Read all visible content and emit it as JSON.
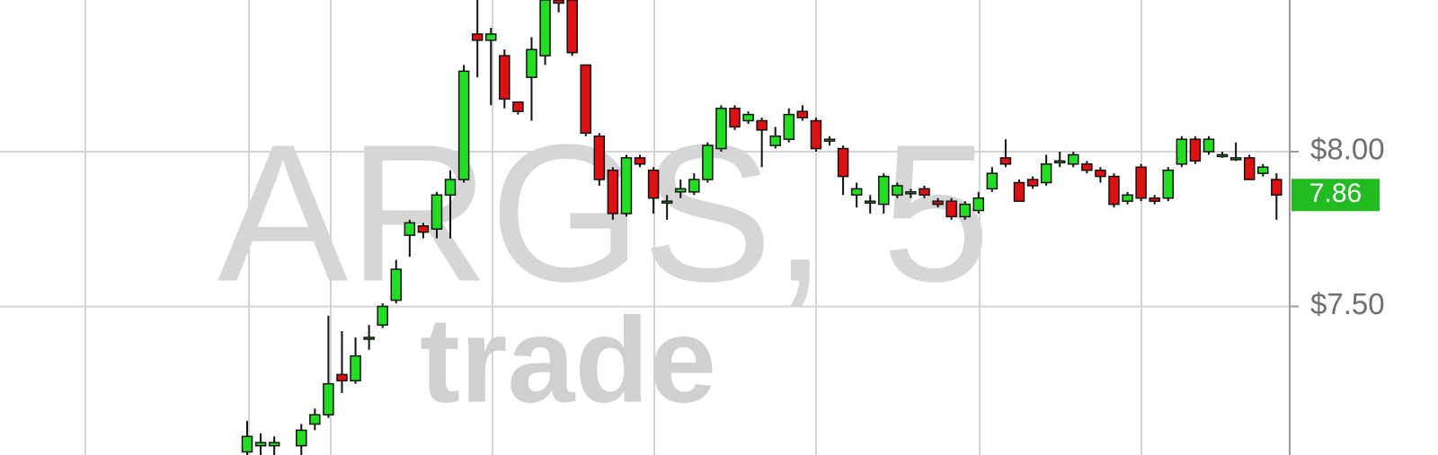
{
  "chart_data": {
    "type": "candlestick",
    "watermark": "ARGS, 5",
    "watermark_brand": "trade",
    "open": [
      7.03,
      7.05,
      7.05,
      7.0,
      7.05,
      7.12,
      7.15,
      7.28,
      7.26,
      7.4,
      7.44,
      7.52,
      7.73,
      7.76,
      7.75,
      7.86,
      7.91,
      8.38,
      8.36,
      8.31,
      8.16,
      8.24,
      8.31,
      8.49,
      8.49,
      8.28,
      8.05,
      7.94,
      7.8,
      7.98,
      7.94,
      7.84,
      7.87,
      7.87,
      7.91,
      8.01,
      8.14,
      8.1,
      8.1,
      8.02,
      8.04,
      8.13,
      8.1,
      8.04,
      8.01,
      7.86,
      7.84,
      7.83,
      7.86,
      7.87,
      7.88,
      7.84,
      7.84,
      7.79,
      7.81,
      7.88,
      7.98,
      7.9,
      7.91,
      7.9,
      7.97,
      7.96,
      7.96,
      7.94,
      7.92,
      7.84,
      7.95,
      7.85,
      7.85,
      7.96,
      8.04,
      8.0,
      7.99,
      7.98,
      7.98,
      7.93,
      7.91
    ],
    "high": [
      7.13,
      7.09,
      7.08,
      7.02,
      7.12,
      7.17,
      7.47,
      7.42,
      7.4,
      7.44,
      7.51,
      7.65,
      7.78,
      7.77,
      7.87,
      7.94,
      8.28,
      8.49,
      8.4,
      8.33,
      8.16,
      8.37,
      8.49,
      8.49,
      8.49,
      8.28,
      8.06,
      7.95,
      7.99,
      7.99,
      7.95,
      7.86,
      7.91,
      7.93,
      8.03,
      8.15,
      8.15,
      8.13,
      8.11,
      8.08,
      8.14,
      8.15,
      8.11,
      8.05,
      8.02,
      7.9,
      7.86,
      7.93,
      7.9,
      7.88,
      7.89,
      7.85,
      7.85,
      7.84,
      7.87,
      7.95,
      8.04,
      7.91,
      7.92,
      7.99,
      8.0,
      8.0,
      7.97,
      7.95,
      7.93,
      7.87,
      7.96,
      7.86,
      7.95,
      8.05,
      8.05,
      8.05,
      8.0,
      8.03,
      7.99,
      7.96,
      7.93
    ],
    "low": [
      7.0,
      7.0,
      7.0,
      6.98,
      7.0,
      7.1,
      7.14,
      7.22,
      7.25,
      7.36,
      7.43,
      7.51,
      7.66,
      7.72,
      7.72,
      7.72,
      7.9,
      8.24,
      8.15,
      8.14,
      8.12,
      8.1,
      8.28,
      8.45,
      8.31,
      8.05,
      7.89,
      7.78,
      7.79,
      7.95,
      7.8,
      7.78,
      7.85,
      7.86,
      7.9,
      8.0,
      8.07,
      8.09,
      7.95,
      8.01,
      8.03,
      8.1,
      8.0,
      8.02,
      7.86,
      7.82,
      7.8,
      7.8,
      7.85,
      7.85,
      7.85,
      7.82,
      7.78,
      7.78,
      7.8,
      7.87,
      7.95,
      7.84,
      7.88,
      7.89,
      7.95,
      7.95,
      7.93,
      7.9,
      7.82,
      7.83,
      7.84,
      7.83,
      7.84,
      7.95,
      7.96,
      7.99,
      7.98,
      7.97,
      7.91,
      7.92,
      7.78
    ],
    "close": [
      7.08,
      7.06,
      7.06,
      7.01,
      7.1,
      7.15,
      7.25,
      7.26,
      7.34,
      7.4,
      7.5,
      7.62,
      7.77,
      7.74,
      7.86,
      7.91,
      8.26,
      8.36,
      8.38,
      8.17,
      8.13,
      8.33,
      8.49,
      8.48,
      8.32,
      8.06,
      7.91,
      7.8,
      7.98,
      7.96,
      7.85,
      7.84,
      7.88,
      7.91,
      8.02,
      8.14,
      8.08,
      8.12,
      8.07,
      8.05,
      8.12,
      8.11,
      8.01,
      8.04,
      7.92,
      7.88,
      7.84,
      7.92,
      7.89,
      7.87,
      7.86,
      7.83,
      7.79,
      7.83,
      7.85,
      7.93,
      7.96,
      7.84,
      7.89,
      7.96,
      7.97,
      7.99,
      7.94,
      7.92,
      7.83,
      7.86,
      7.85,
      7.84,
      7.94,
      8.04,
      7.97,
      8.04,
      7.99,
      7.98,
      7.91,
      7.95,
      7.86
    ],
    "up_color": "#22dd22",
    "down_color": "#dd1111",
    "last_price": 7.86,
    "last_price_color": "#22bb22",
    "ylim": [
      7.02,
      8.49
    ],
    "yticks": [
      {
        "value": 7.5,
        "label": "$7.50"
      },
      {
        "value": 8,
        "label": "$8.00"
      }
    ],
    "grid": true
  }
}
